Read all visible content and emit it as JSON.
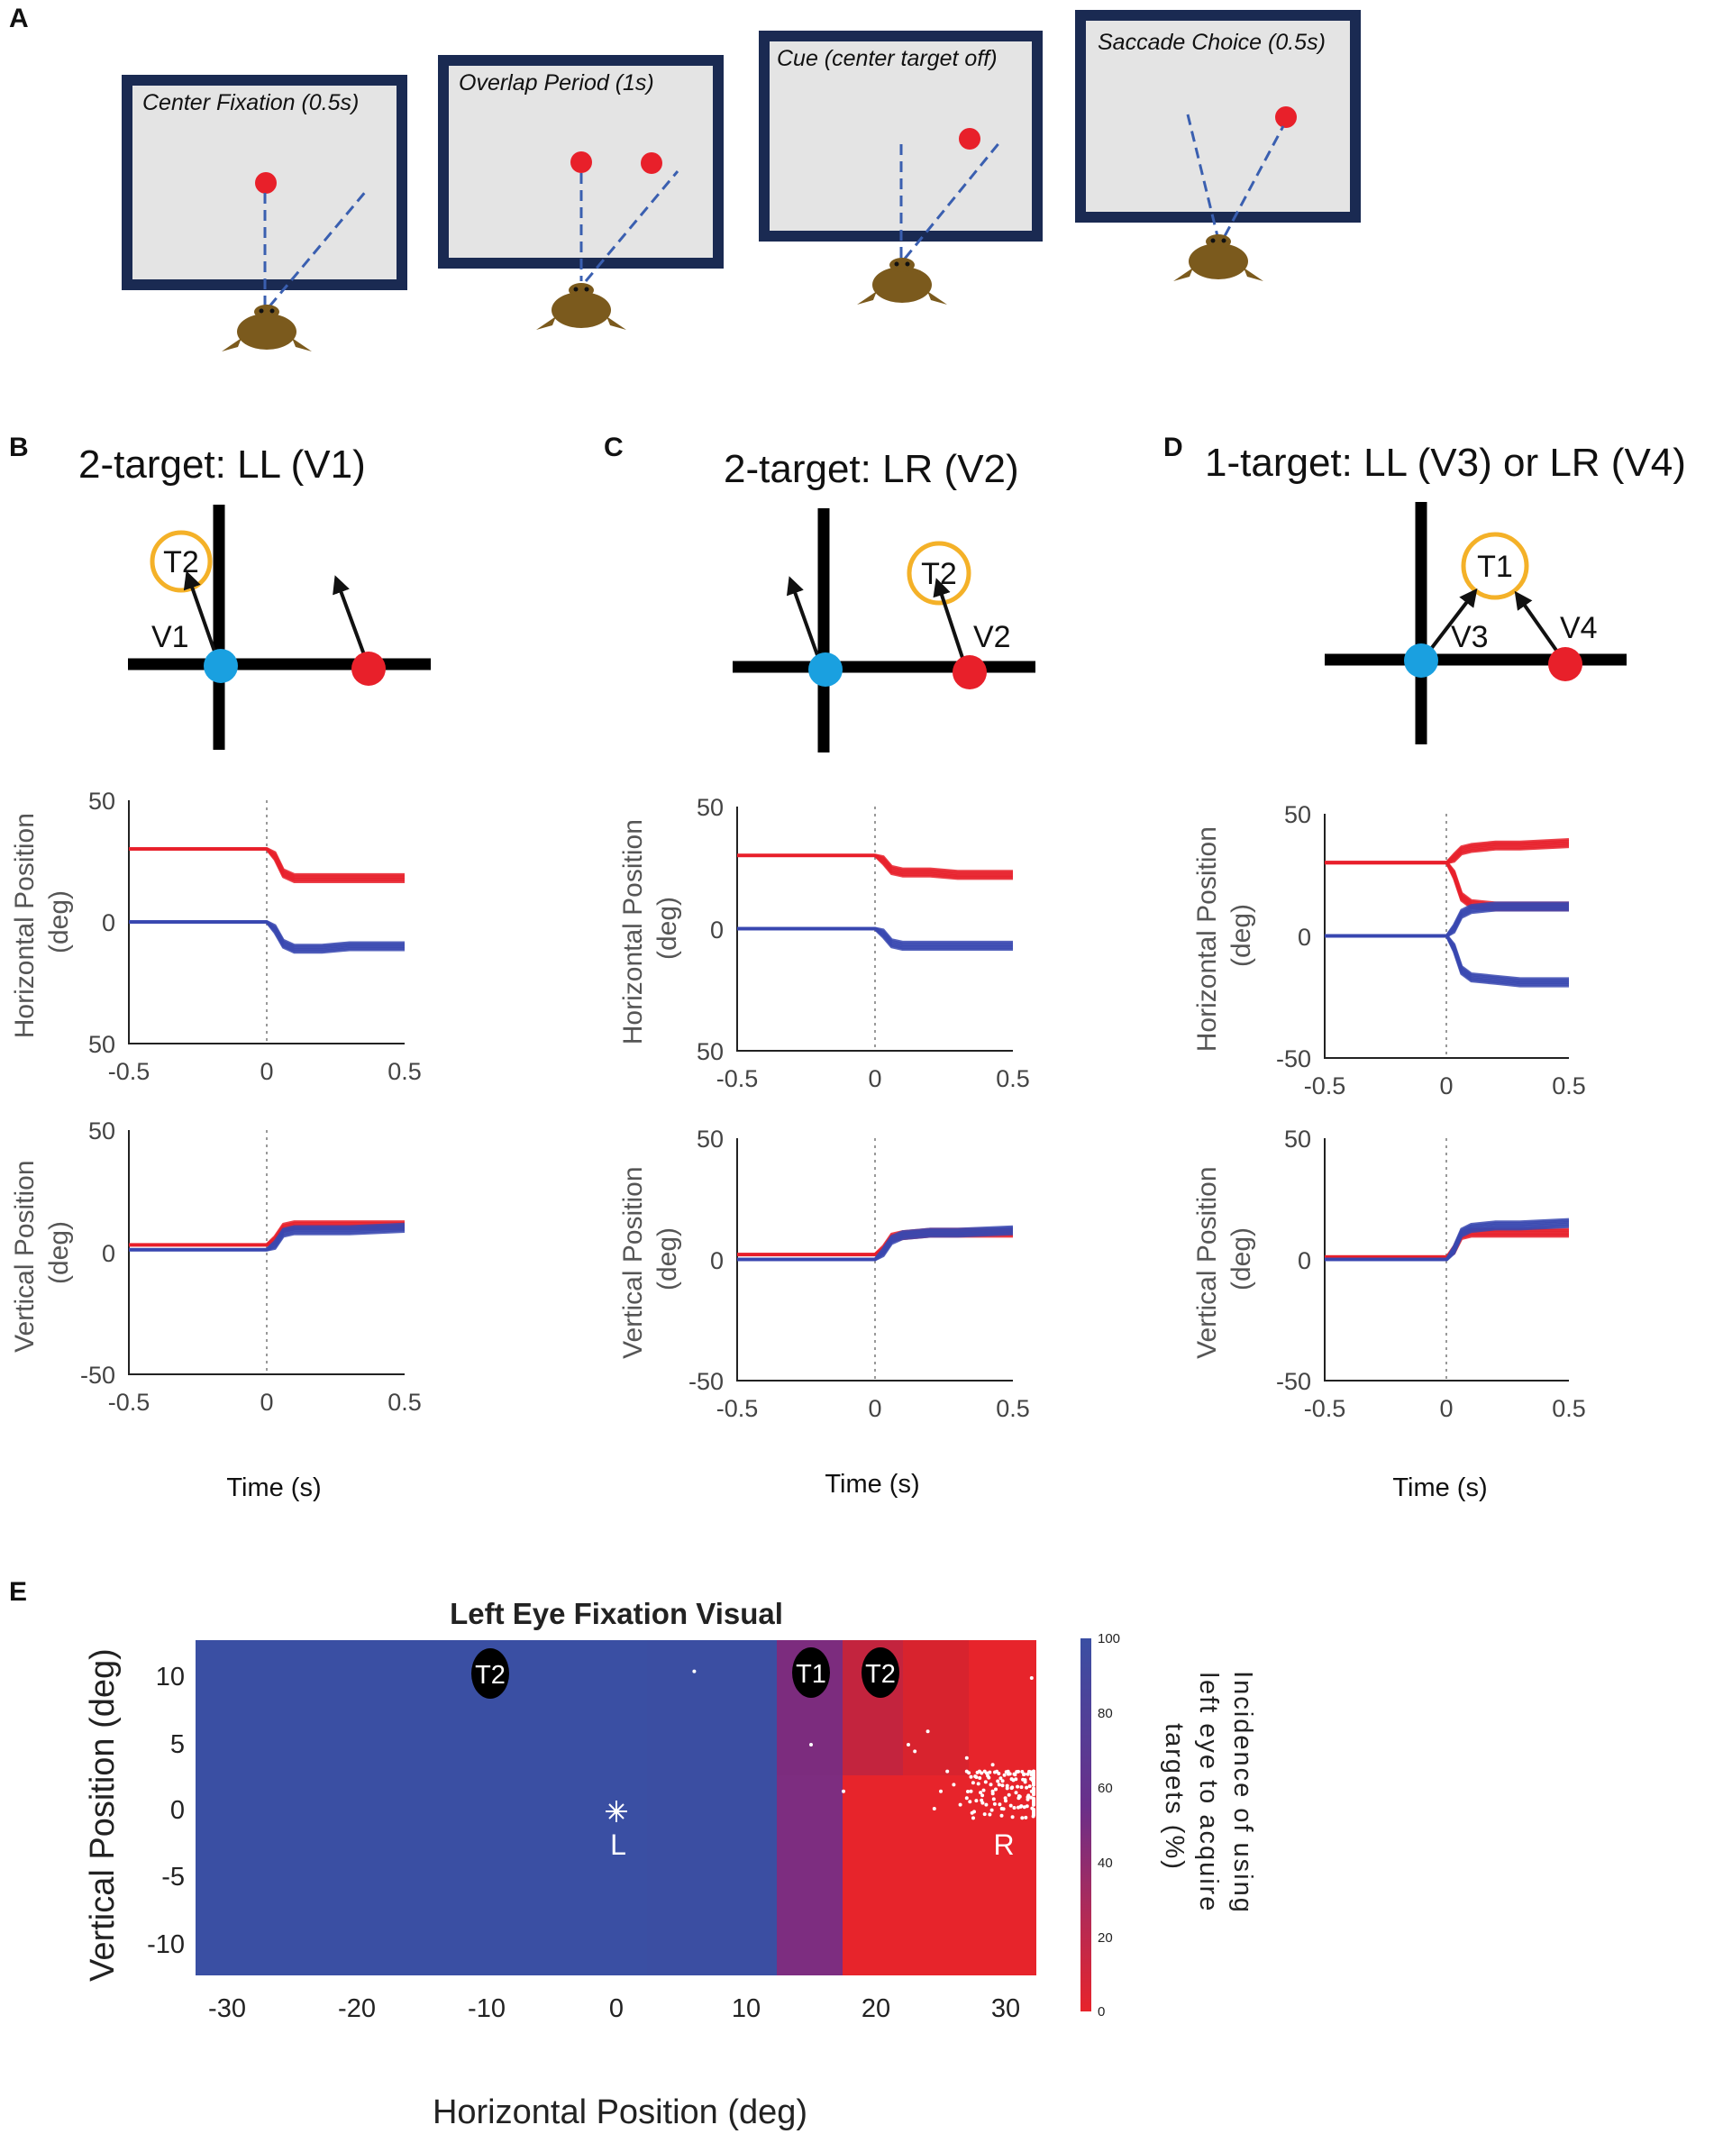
{
  "panel_labels": {
    "A": "A",
    "B": "B",
    "C": "C",
    "D": "D",
    "E": "E"
  },
  "panel_a": {
    "stages": [
      "Center Fixation (0.5s)",
      "Overlap Period (1s)",
      "Cue (center target off)",
      "Saccade Choice (0.5s)"
    ]
  },
  "colors": {
    "red": "#e8202a",
    "blue": "#3848b0",
    "cyan": "#1aa0e0",
    "orange": "#f4b128",
    "monitor_frame": "#1a2a52",
    "screen": "#e4e4e4",
    "heat_blue": "#3a4fa3",
    "heat_purple": "#7d2d80",
    "heat_red": "#e7242b"
  },
  "panels": [
    {
      "key": "B",
      "title": "2-target: LL (V1)",
      "schematic": {
        "circle_label": "T2",
        "labels": [
          "V1"
        ]
      },
      "horizontal": {
        "ylabel": "Horizontal Position (deg)",
        "yticks": [
          "50",
          "0",
          "50"
        ]
      },
      "vertical": {
        "ylabel": "Vertical Position (deg)",
        "yticks": [
          "50",
          "0",
          "-50"
        ]
      },
      "xticks": [
        "-0.5",
        "0",
        "0.5"
      ],
      "xlabel": "Time (s)"
    },
    {
      "key": "C",
      "title": "2-target: LR (V2)",
      "schematic": {
        "circle_label": "T2",
        "labels": [
          "V2"
        ]
      },
      "horizontal": {
        "ylabel": "Horizontal Position (deg)",
        "yticks": [
          "50",
          "0",
          "50"
        ]
      },
      "vertical": {
        "ylabel": "Vertical Position (deg)",
        "yticks": [
          "50",
          "0",
          "-50"
        ]
      },
      "xticks": [
        "-0.5",
        "0",
        "0.5"
      ],
      "xlabel": "Time (s)"
    },
    {
      "key": "D",
      "title": "1-target: LL (V3) or LR (V4)",
      "schematic": {
        "circle_label": "T1",
        "labels": [
          "V3",
          "V4"
        ]
      },
      "horizontal": {
        "ylabel": "Horizontal Position (deg)",
        "yticks": [
          "50",
          "0",
          "-50"
        ]
      },
      "vertical": {
        "ylabel": "Vertical Position (deg)",
        "yticks": [
          "50",
          "0",
          "-50"
        ]
      },
      "xticks": [
        "-0.5",
        "0",
        "0.5"
      ],
      "xlabel": "Time (s)"
    }
  ],
  "heatmap": {
    "title": "Left Eye Fixation Visual",
    "xlabel": "Horizontal Position (deg)",
    "ylabel": "Vertical Position (deg)",
    "xticks": [
      "-30",
      "-20",
      "-10",
      "0",
      "10",
      "20",
      "30"
    ],
    "yticks": [
      "10",
      "5",
      "0",
      "-5",
      "-10"
    ],
    "colorbar_label_lines": [
      "Incidence of using",
      "left eye to acquire",
      "targets (%)"
    ],
    "colorbar_ticks": [
      "100",
      "80",
      "60",
      "40",
      "20",
      "0"
    ],
    "targets": [
      {
        "label": "T2",
        "x": -10,
        "y": 10
      },
      {
        "label": "T1",
        "x": 15,
        "y": 10
      },
      {
        "label": "T2",
        "x": 20,
        "y": 10
      }
    ],
    "eye_markers": [
      {
        "label": "L",
        "x": 0,
        "y": -2.5
      },
      {
        "label": "R",
        "x": 30,
        "y": -2.5
      }
    ]
  },
  "chart_data": [
    {
      "type": "line",
      "panel": "B",
      "title": "2-target: LL (V1)",
      "xlabel": "Time (s)",
      "ylabel": "Horizontal Position (deg)",
      "xlim": [
        -0.5,
        0.5
      ],
      "ylim": [
        -50,
        50
      ],
      "x": [
        -0.5,
        -0.1,
        0.0,
        0.03,
        0.06,
        0.1,
        0.2,
        0.3,
        0.5
      ],
      "series": [
        {
          "name": "red",
          "values": [
            30,
            30,
            30,
            27,
            20,
            18,
            18,
            18,
            18
          ]
        },
        {
          "name": "blue",
          "values": [
            0,
            0,
            0,
            -3,
            -9,
            -11,
            -11,
            -10,
            -10
          ]
        }
      ]
    },
    {
      "type": "line",
      "panel": "B",
      "xlabel": "Time (s)",
      "ylabel": "Vertical Position (deg)",
      "xlim": [
        -0.5,
        0.5
      ],
      "ylim": [
        -50,
        50
      ],
      "x": [
        -0.5,
        -0.1,
        0.0,
        0.03,
        0.06,
        0.1,
        0.2,
        0.3,
        0.5
      ],
      "series": [
        {
          "name": "red",
          "values": [
            3,
            3,
            3,
            5,
            10,
            11,
            11,
            11,
            11
          ]
        },
        {
          "name": "blue",
          "values": [
            1,
            1,
            1,
            3,
            8,
            9,
            9,
            9,
            10
          ]
        }
      ]
    },
    {
      "type": "line",
      "panel": "C",
      "title": "2-target: LR (V2)",
      "xlabel": "Time (s)",
      "ylabel": "Horizontal Position (deg)",
      "xlim": [
        -0.5,
        0.5
      ],
      "ylim": [
        -50,
        50
      ],
      "x": [
        -0.5,
        -0.1,
        0.0,
        0.03,
        0.06,
        0.1,
        0.2,
        0.3,
        0.5
      ],
      "series": [
        {
          "name": "red",
          "values": [
            30,
            30,
            30,
            28,
            24,
            23,
            23,
            22,
            22
          ]
        },
        {
          "name": "blue",
          "values": [
            0,
            0,
            0,
            -2,
            -6,
            -7,
            -7,
            -7,
            -7
          ]
        }
      ]
    },
    {
      "type": "line",
      "panel": "C",
      "xlabel": "Time (s)",
      "ylabel": "Vertical Position (deg)",
      "xlim": [
        -0.5,
        0.5
      ],
      "ylim": [
        -50,
        50
      ],
      "x": [
        -0.5,
        -0.1,
        0.0,
        0.03,
        0.06,
        0.1,
        0.2,
        0.3,
        0.5
      ],
      "series": [
        {
          "name": "red",
          "values": [
            2,
            2,
            2,
            4,
            9,
            10,
            11,
            11,
            11
          ]
        },
        {
          "name": "blue",
          "values": [
            0,
            0,
            0,
            3,
            8,
            10,
            11,
            11,
            12
          ]
        }
      ]
    },
    {
      "type": "line",
      "panel": "D",
      "title": "1-target: LL (V3) or LR (V4)",
      "xlabel": "Time (s)",
      "ylabel": "Horizontal Position (deg)",
      "xlim": [
        -0.5,
        0.5
      ],
      "ylim": [
        -50,
        50
      ],
      "x": [
        -0.5,
        -0.1,
        0.0,
        0.03,
        0.06,
        0.1,
        0.2,
        0.3,
        0.5
      ],
      "series": [
        {
          "name": "red (to V4 target)",
          "values": [
            30,
            30,
            30,
            32,
            35,
            36,
            37,
            37,
            38
          ]
        },
        {
          "name": "red (other)",
          "values": [
            30,
            30,
            30,
            25,
            16,
            13,
            12,
            12,
            12
          ]
        },
        {
          "name": "blue (other)",
          "values": [
            0,
            0,
            0,
            3,
            9,
            11,
            12,
            12,
            12
          ]
        },
        {
          "name": "blue (to V3 target)",
          "values": [
            0,
            0,
            0,
            -5,
            -14,
            -17,
            -18,
            -19,
            -19
          ]
        }
      ]
    },
    {
      "type": "line",
      "panel": "D",
      "xlabel": "Time (s)",
      "ylabel": "Vertical Position (deg)",
      "xlim": [
        -0.5,
        0.5
      ],
      "ylim": [
        -50,
        50
      ],
      "x": [
        -0.5,
        -0.1,
        0.0,
        0.03,
        0.06,
        0.1,
        0.2,
        0.3,
        0.5
      ],
      "series": [
        {
          "name": "red",
          "values": [
            1,
            1,
            1,
            4,
            10,
            11,
            11,
            11,
            11
          ]
        },
        {
          "name": "blue",
          "values": [
            0,
            0,
            0,
            4,
            11,
            13,
            14,
            14,
            15
          ]
        }
      ]
    },
    {
      "type": "heatmap",
      "panel": "E",
      "title": "Left Eye Fixation Visual",
      "xlabel": "Horizontal Position (deg)",
      "ylabel": "Vertical Position (deg)",
      "xlim": [
        -33,
        33
      ],
      "ylim": [
        -12.5,
        12.5
      ],
      "colorbar": {
        "label": "Incidence of using left eye to acquire targets (%)",
        "range": [
          0,
          100
        ]
      },
      "regions": [
        {
          "x_range": [
            -33,
            12.5
          ],
          "value": 100
        },
        {
          "x_range": [
            12.5,
            17.5
          ],
          "value": 60
        },
        {
          "x_range": [
            17.5,
            33
          ],
          "value": 0
        }
      ],
      "fixation_points": [
        [
          6,
          10.5
        ],
        [
          15,
          5
        ],
        [
          17.5,
          1.5
        ],
        [
          22.5,
          5
        ],
        [
          23,
          4.5
        ],
        [
          24,
          6
        ],
        [
          25.5,
          3
        ],
        [
          26,
          2
        ],
        [
          27,
          1
        ],
        [
          28,
          2.5
        ],
        [
          28.5,
          0.5
        ],
        [
          29,
          1.5
        ],
        [
          29.5,
          2
        ],
        [
          30,
          0.8
        ],
        [
          30.5,
          1.8
        ],
        [
          31,
          1
        ],
        [
          31.5,
          2.2
        ],
        [
          32,
          1.5
        ],
        [
          27.5,
          -0.5
        ],
        [
          29,
          3.5
        ],
        [
          26.5,
          0.5
        ],
        [
          30.2,
          2.8
        ],
        [
          31.2,
          0.4
        ],
        [
          28.2,
          1.2
        ],
        [
          25,
          1.5
        ],
        [
          24.5,
          0.2
        ],
        [
          32,
          10
        ],
        [
          32.5,
          3
        ],
        [
          27,
          4
        ],
        [
          29.7,
          0.2
        ],
        [
          30.8,
          1.4
        ],
        [
          31.7,
          0.9
        ]
      ]
    }
  ]
}
